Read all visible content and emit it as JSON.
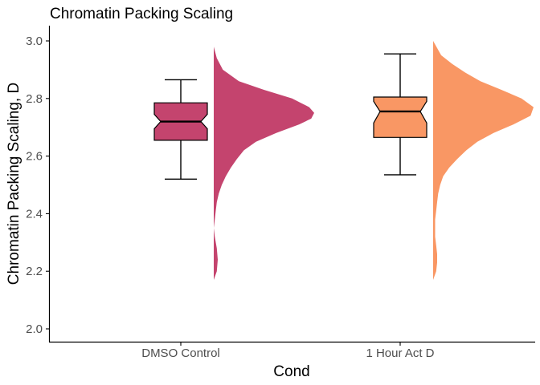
{
  "chart_data": {
    "type": "raincloud",
    "title": "Chromatin Packing Scaling",
    "xlabel": "Cond",
    "ylabel": "Chromatin Packing Scaling, D",
    "ylim": [
      1.95,
      3.0
    ],
    "yticks": [
      2.0,
      2.2,
      2.4,
      2.6,
      2.8,
      3.0
    ],
    "ytick_labels": [
      "2.0",
      "2.2",
      "2.4",
      "2.6",
      "2.8",
      "3.0"
    ],
    "categories": [
      "DMSO Control",
      "1 Hour Act D"
    ],
    "grid": false,
    "legend": "none",
    "groups": [
      {
        "category": "DMSO Control",
        "color": "#c4446e",
        "box": {
          "lower_whisker": 2.52,
          "q1": 2.655,
          "median": 2.72,
          "q3": 2.785,
          "upper_whisker": 2.865,
          "notch": [
            2.695,
            2.745
          ]
        },
        "density": {
          "y": [
            2.17,
            2.2,
            2.24,
            2.28,
            2.32,
            2.35,
            2.38,
            2.41,
            2.44,
            2.47,
            2.5,
            2.53,
            2.56,
            2.59,
            2.62,
            2.65,
            2.68,
            2.71,
            2.73,
            2.75,
            2.77,
            2.8,
            2.83,
            2.86,
            2.9,
            2.94,
            2.98
          ],
          "value": [
            0.0,
            0.03,
            0.04,
            0.03,
            0.01,
            0.0,
            0.01,
            0.02,
            0.03,
            0.05,
            0.08,
            0.12,
            0.17,
            0.23,
            0.3,
            0.42,
            0.62,
            0.85,
            0.97,
            1.0,
            0.95,
            0.78,
            0.5,
            0.25,
            0.09,
            0.03,
            0.0
          ]
        }
      },
      {
        "category": "1 Hour Act D",
        "color": "#f99764",
        "box": {
          "lower_whisker": 2.535,
          "q1": 2.665,
          "median": 2.755,
          "q3": 2.805,
          "upper_whisker": 2.955,
          "notch": [
            2.715,
            2.79
          ]
        },
        "density": {
          "y": [
            2.17,
            2.2,
            2.23,
            2.26,
            2.29,
            2.32,
            2.35,
            2.38,
            2.41,
            2.44,
            2.47,
            2.5,
            2.53,
            2.56,
            2.59,
            2.62,
            2.65,
            2.68,
            2.71,
            2.74,
            2.77,
            2.8,
            2.83,
            2.86,
            2.89,
            2.92,
            2.95,
            3.0
          ],
          "value": [
            0.0,
            0.03,
            0.04,
            0.04,
            0.03,
            0.02,
            0.02,
            0.02,
            0.03,
            0.04,
            0.05,
            0.07,
            0.1,
            0.16,
            0.24,
            0.33,
            0.44,
            0.6,
            0.8,
            0.97,
            1.0,
            0.88,
            0.68,
            0.47,
            0.32,
            0.19,
            0.08,
            0.0
          ]
        }
      }
    ]
  }
}
